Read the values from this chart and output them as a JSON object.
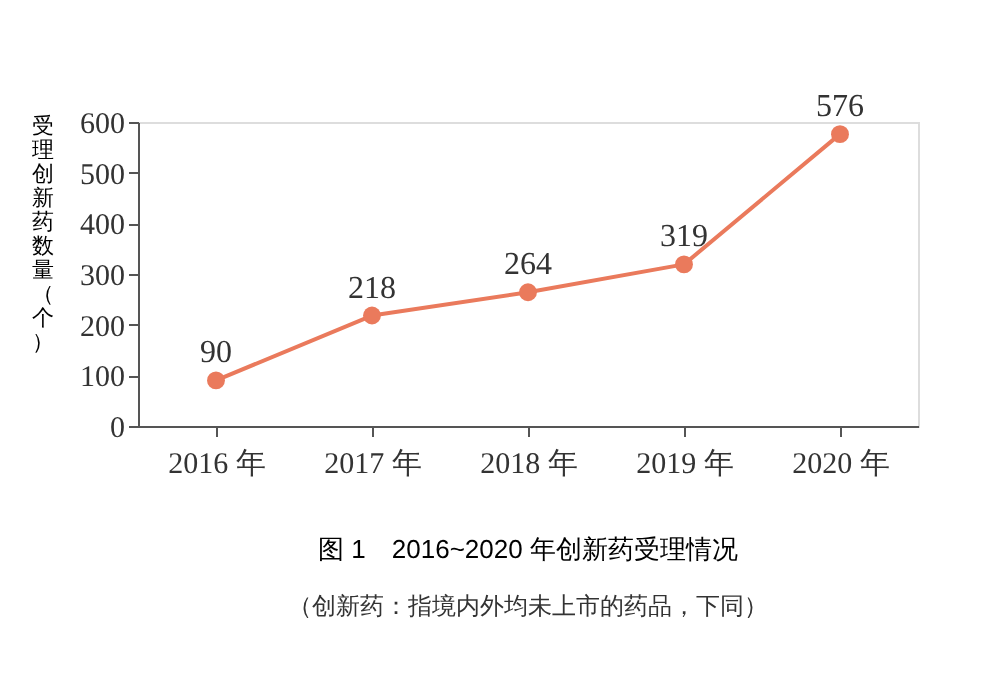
{
  "chart_data": {
    "type": "line",
    "title": "图 1　2016~2020 年创新药受理情况",
    "ylabel": "受理创新药数量（个）",
    "annotations": [
      "（创新药：指境内外均未上市的药品，下同）"
    ],
    "categories": [
      "2016 年",
      "2017 年",
      "2018 年",
      "2019 年",
      "2020 年"
    ],
    "series": [
      {
        "color": "#ea7a5c",
        "values": [
          90,
          218,
          264,
          319,
          576
        ]
      }
    ],
    "ylim": [
      0,
      600
    ],
    "yticks": [
      0,
      100,
      200,
      300,
      400,
      500,
      600
    ],
    "data_labels": true,
    "marker": "circle",
    "line_style": "solid",
    "grid": false
  }
}
